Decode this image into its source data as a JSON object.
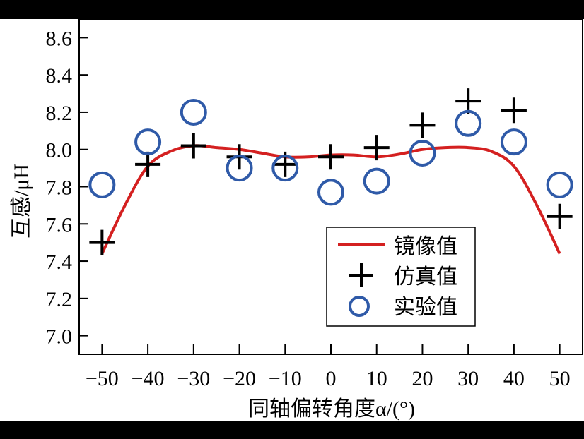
{
  "chart_data": {
    "type": "line",
    "xlabel": "同轴偏转角度α/(°)",
    "ylabel": "互感/μH",
    "xlim": [
      -55,
      55
    ],
    "ylim": [
      6.9,
      8.7
    ],
    "xticks": [
      -50,
      -40,
      -30,
      -20,
      -10,
      0,
      10,
      20,
      30,
      40,
      50
    ],
    "xtick_labels": [
      "−50",
      "−40",
      "−30",
      "−20",
      "−10",
      "0",
      "10",
      "20",
      "30",
      "40",
      "50"
    ],
    "yticks": [
      7.0,
      7.2,
      7.4,
      7.6,
      7.8,
      8.0,
      8.2,
      8.4,
      8.6
    ],
    "ytick_labels": [
      "7.0",
      "7.2",
      "7.4",
      "7.6",
      "7.8",
      "8.0",
      "8.2",
      "8.4",
      "8.6"
    ],
    "grid": false,
    "legend_placement": "lower-right",
    "series": [
      {
        "name": "镜像值",
        "style": "line",
        "color": "#d42020",
        "x": [
          -50,
          -45,
          -40,
          -35,
          -30,
          -25,
          -20,
          -15,
          -10,
          -5,
          0,
          5,
          10,
          15,
          20,
          25,
          30,
          35,
          40,
          45,
          50
        ],
        "y": [
          7.44,
          7.7,
          7.91,
          7.99,
          8.02,
          8.01,
          8.0,
          7.98,
          7.96,
          7.96,
          7.97,
          7.97,
          7.96,
          7.975,
          8.0,
          8.01,
          8.01,
          7.99,
          7.91,
          7.7,
          7.44
        ]
      },
      {
        "name": "仿真值",
        "style": "plus",
        "color": "#000000",
        "x": [
          -50,
          -40,
          -30,
          -20,
          -10,
          0,
          10,
          20,
          30,
          40,
          50
        ],
        "y": [
          7.5,
          7.92,
          8.02,
          7.96,
          7.92,
          7.96,
          8.01,
          8.13,
          8.26,
          8.21,
          7.64
        ]
      },
      {
        "name": "实验值",
        "style": "circle",
        "color": "#2f5aa8",
        "x": [
          -50,
          -40,
          -30,
          -20,
          -10,
          0,
          10,
          20,
          30,
          40,
          50
        ],
        "y": [
          7.81,
          8.04,
          8.2,
          7.9,
          7.9,
          7.77,
          7.83,
          7.98,
          8.14,
          8.04,
          7.81
        ]
      }
    ]
  }
}
